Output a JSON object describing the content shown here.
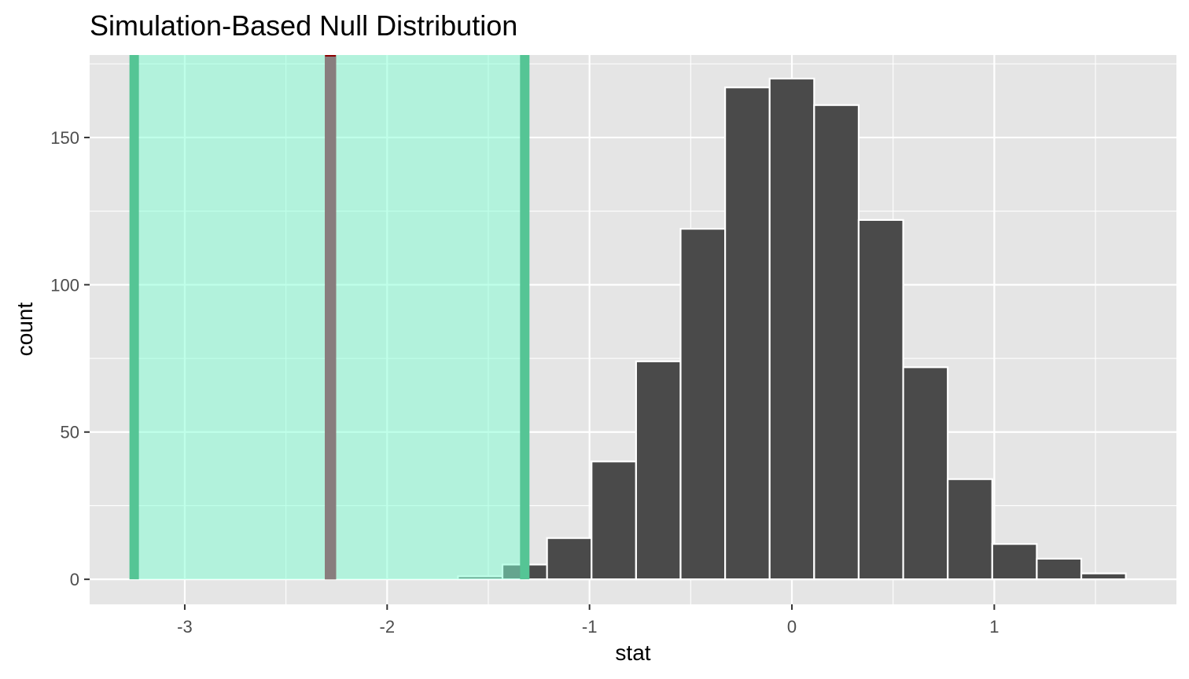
{
  "chart_data": {
    "type": "bar",
    "subtype": "histogram",
    "title": "Simulation-Based Null Distribution",
    "xlabel": "stat",
    "ylabel": "count",
    "xlim": [
      -3.47,
      1.9
    ],
    "ylim": [
      -8.5,
      178
    ],
    "x_ticks": [
      -3,
      -2,
      -1,
      0,
      1
    ],
    "y_ticks": [
      0,
      50,
      100,
      150
    ],
    "x_minor_ticks": [
      -2.5,
      -1.5,
      -0.5,
      0.5,
      1.5
    ],
    "y_minor_ticks": [
      25,
      75,
      125,
      175
    ],
    "grid": true,
    "bin_width": 0.22,
    "bins": [
      {
        "xmin": -1.65,
        "xmax": -1.43,
        "count": 1
      },
      {
        "xmin": -1.43,
        "xmax": -1.21,
        "count": 5
      },
      {
        "xmin": -1.21,
        "xmax": -0.99,
        "count": 14
      },
      {
        "xmin": -0.99,
        "xmax": -0.77,
        "count": 40
      },
      {
        "xmin": -0.77,
        "xmax": -0.55,
        "count": 74
      },
      {
        "xmin": -0.55,
        "xmax": -0.33,
        "count": 119
      },
      {
        "xmin": -0.33,
        "xmax": -0.11,
        "count": 167
      },
      {
        "xmin": -0.11,
        "xmax": 0.11,
        "count": 170
      },
      {
        "xmin": 0.11,
        "xmax": 0.33,
        "count": 161
      },
      {
        "xmin": 0.33,
        "xmax": 0.55,
        "count": 122
      },
      {
        "xmin": 0.55,
        "xmax": 0.77,
        "count": 72
      },
      {
        "xmin": 0.77,
        "xmax": 0.99,
        "count": 34
      },
      {
        "xmin": 0.99,
        "xmax": 1.21,
        "count": 12
      },
      {
        "xmin": 1.21,
        "xmax": 1.43,
        "count": 7
      },
      {
        "xmin": 1.43,
        "xmax": 1.65,
        "count": 2
      }
    ],
    "observed_statistic": -2.28,
    "confidence_interval": {
      "lower": -3.25,
      "upper": -1.32
    },
    "colors": {
      "panel_background": "#e5e5e5",
      "grid": "#ffffff",
      "bar_fill": "#4a4a4a",
      "bar_outline": "#ffffff",
      "ci_fill": "#7fffd4",
      "ci_edge": "#55c595",
      "observed_line": "#8b0000",
      "tick_label": "#4d4d4d",
      "tick_mark": "#333333"
    }
  }
}
